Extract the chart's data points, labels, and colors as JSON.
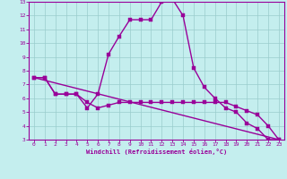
{
  "xlabel": "Windchill (Refroidissement éolien,°C)",
  "background_color": "#c4eeee",
  "grid_color": "#99cccc",
  "line_color": "#990099",
  "xlim": [
    -0.5,
    23.5
  ],
  "ylim": [
    3,
    13
  ],
  "xticks": [
    0,
    1,
    2,
    3,
    4,
    5,
    6,
    7,
    8,
    9,
    10,
    11,
    12,
    13,
    14,
    15,
    16,
    17,
    18,
    19,
    20,
    21,
    22,
    23
  ],
  "yticks": [
    3,
    4,
    5,
    6,
    7,
    8,
    9,
    10,
    11,
    12,
    13
  ],
  "series1_x": [
    0,
    1,
    2,
    3,
    4,
    5,
    6,
    7,
    8,
    9,
    10,
    11,
    12,
    13,
    14,
    15,
    16,
    17,
    18,
    19,
    20,
    21,
    22,
    23
  ],
  "series1_y": [
    7.5,
    7.5,
    6.3,
    6.3,
    6.3,
    5.3,
    6.3,
    9.2,
    10.5,
    11.7,
    11.7,
    11.7,
    13.0,
    13.2,
    12.0,
    8.2,
    6.8,
    6.0,
    5.3,
    5.0,
    4.2,
    3.8,
    3.0,
    3.0
  ],
  "series2_x": [
    0,
    1,
    2,
    3,
    4,
    5,
    6,
    7,
    8,
    9,
    10,
    11,
    12,
    13,
    14,
    15,
    16,
    17,
    18,
    19,
    20,
    21,
    22,
    23
  ],
  "series2_y": [
    7.5,
    7.5,
    6.3,
    6.3,
    6.3,
    5.7,
    5.3,
    5.5,
    5.7,
    5.7,
    5.7,
    5.7,
    5.7,
    5.7,
    5.7,
    5.7,
    5.7,
    5.7,
    5.7,
    5.4,
    5.1,
    4.8,
    4.0,
    3.0
  ],
  "series3_x": [
    0,
    23
  ],
  "series3_y": [
    7.5,
    3.0
  ],
  "marker_size": 2.5,
  "line_width": 1.0
}
